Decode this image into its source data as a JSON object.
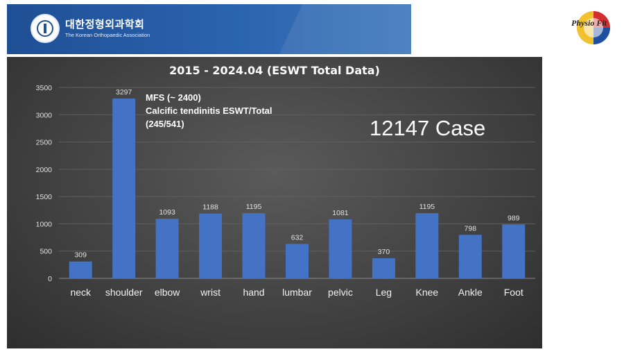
{
  "header": {
    "org_name": "대한정형외과학회",
    "org_sub": "The Korean Orthopaedic Association",
    "logo_text": "Physio Fit"
  },
  "annotation": {
    "line1": "MFS (~ 2400)",
    "line2": "Calcific tendinitis ESWT/Total",
    "line3": "(245/541)"
  },
  "case_label": "12147 Case",
  "colors": {
    "bar": "#4472c4",
    "panel": "#404040",
    "banner": "#2a63ad"
  },
  "chart_data": {
    "type": "bar",
    "title": "2015 - 2024.04 (ESWT Total Data)",
    "categories": [
      "neck",
      "shoulder",
      "elbow",
      "wrist",
      "hand",
      "lumbar",
      "pelvic",
      "Leg",
      "Knee",
      "Ankle",
      "Foot"
    ],
    "values": [
      309,
      3297,
      1093,
      1188,
      1195,
      632,
      1081,
      370,
      1195,
      798,
      989
    ],
    "yticks": [
      "0",
      "500",
      "1000",
      "1500",
      "2000",
      "2500",
      "3000",
      "3500"
    ],
    "ylim": [
      0,
      3500
    ],
    "grid": true,
    "legend": "none",
    "data_labels": true
  }
}
